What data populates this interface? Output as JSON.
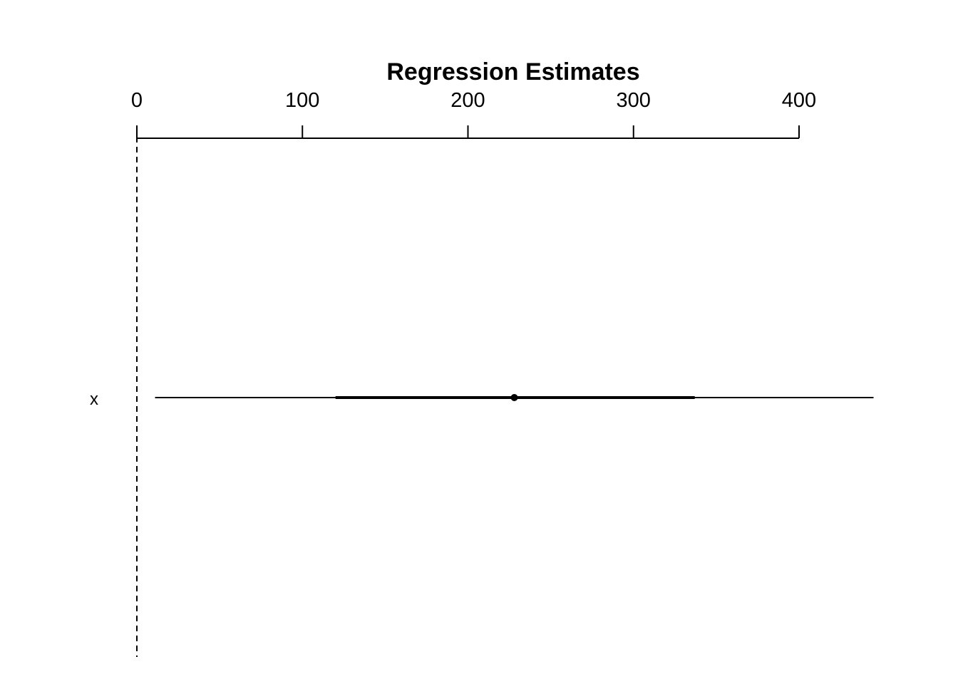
{
  "chart_data": {
    "type": "coefficient-plot",
    "title": "Regression Estimates",
    "xlim": [
      0,
      445
    ],
    "axis_position": "top",
    "ticks": [
      0,
      100,
      200,
      300,
      400
    ],
    "tick_labels": [
      "0",
      "100",
      "200",
      "300",
      "400"
    ],
    "reference_line": {
      "x": 0,
      "style": "dashed"
    },
    "grid": false,
    "coefficients": [
      {
        "name": "x",
        "estimate": 228,
        "inner": [
          120,
          337
        ],
        "outer": [
          11,
          445
        ]
      }
    ]
  }
}
